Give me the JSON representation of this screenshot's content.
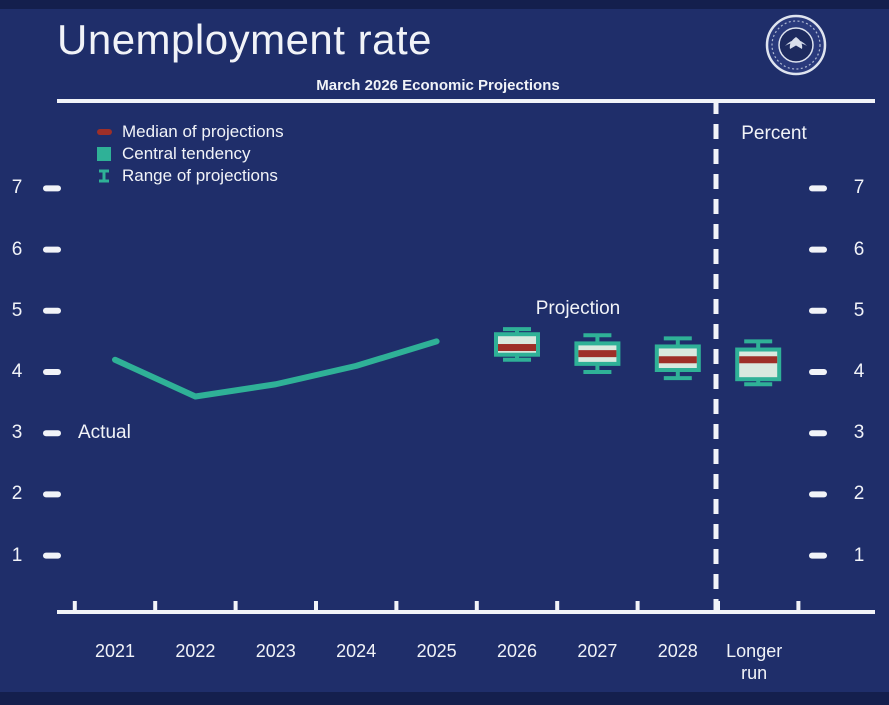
{
  "title": "Unemployment rate",
  "subtitle": "March 2026 Economic Projections",
  "percent_label": "Percent",
  "annotations": {
    "actual": "Actual",
    "projection": "Projection"
  },
  "legend": [
    {
      "icon": "median-dash-icon",
      "label": "Median of projections"
    },
    {
      "icon": "central-tendency-box-icon",
      "label": "Central tendency"
    },
    {
      "icon": "range-ibeam-icon",
      "label": "Range of projections"
    }
  ],
  "y_axis": {
    "ticks": [
      7,
      6,
      5,
      4,
      3,
      2,
      1
    ]
  },
  "x_axis": {
    "labels": [
      "2021",
      "2022",
      "2023",
      "2024",
      "2025",
      "2026",
      "2027",
      "2028",
      "Longer run"
    ]
  },
  "colors": {
    "background": "#1f2e6a",
    "band": "#141f4d",
    "frame": "#f1f3f8",
    "text": "#f1f3f8",
    "accent_teal": "#2fb197",
    "median_red": "#9e2f28",
    "box_inner": "#d9e9df"
  },
  "chart_data": {
    "type": "line",
    "title": "Unemployment rate",
    "subtitle": "March 2026 Economic Projections",
    "ylabel": "Percent",
    "ylim": [
      0,
      7.5
    ],
    "grid": false,
    "actual": {
      "name": "Actual",
      "years": [
        "2021",
        "2022",
        "2023",
        "2024",
        "2025"
      ],
      "values": [
        4.2,
        3.6,
        3.8,
        4.1,
        4.5
      ]
    },
    "projections": [
      {
        "label": "2026",
        "median": 4.4,
        "central": [
          4.25,
          4.65
        ],
        "range": [
          4.2,
          4.7
        ]
      },
      {
        "label": "2027",
        "median": 4.3,
        "central": [
          4.1,
          4.5
        ],
        "range": [
          4.0,
          4.6
        ]
      },
      {
        "label": "2028",
        "median": 4.2,
        "central": [
          4.0,
          4.45
        ],
        "range": [
          3.9,
          4.55
        ]
      },
      {
        "label": "Longer run",
        "median": 4.2,
        "central": [
          3.85,
          4.4
        ],
        "range": [
          3.8,
          4.5
        ]
      }
    ]
  }
}
